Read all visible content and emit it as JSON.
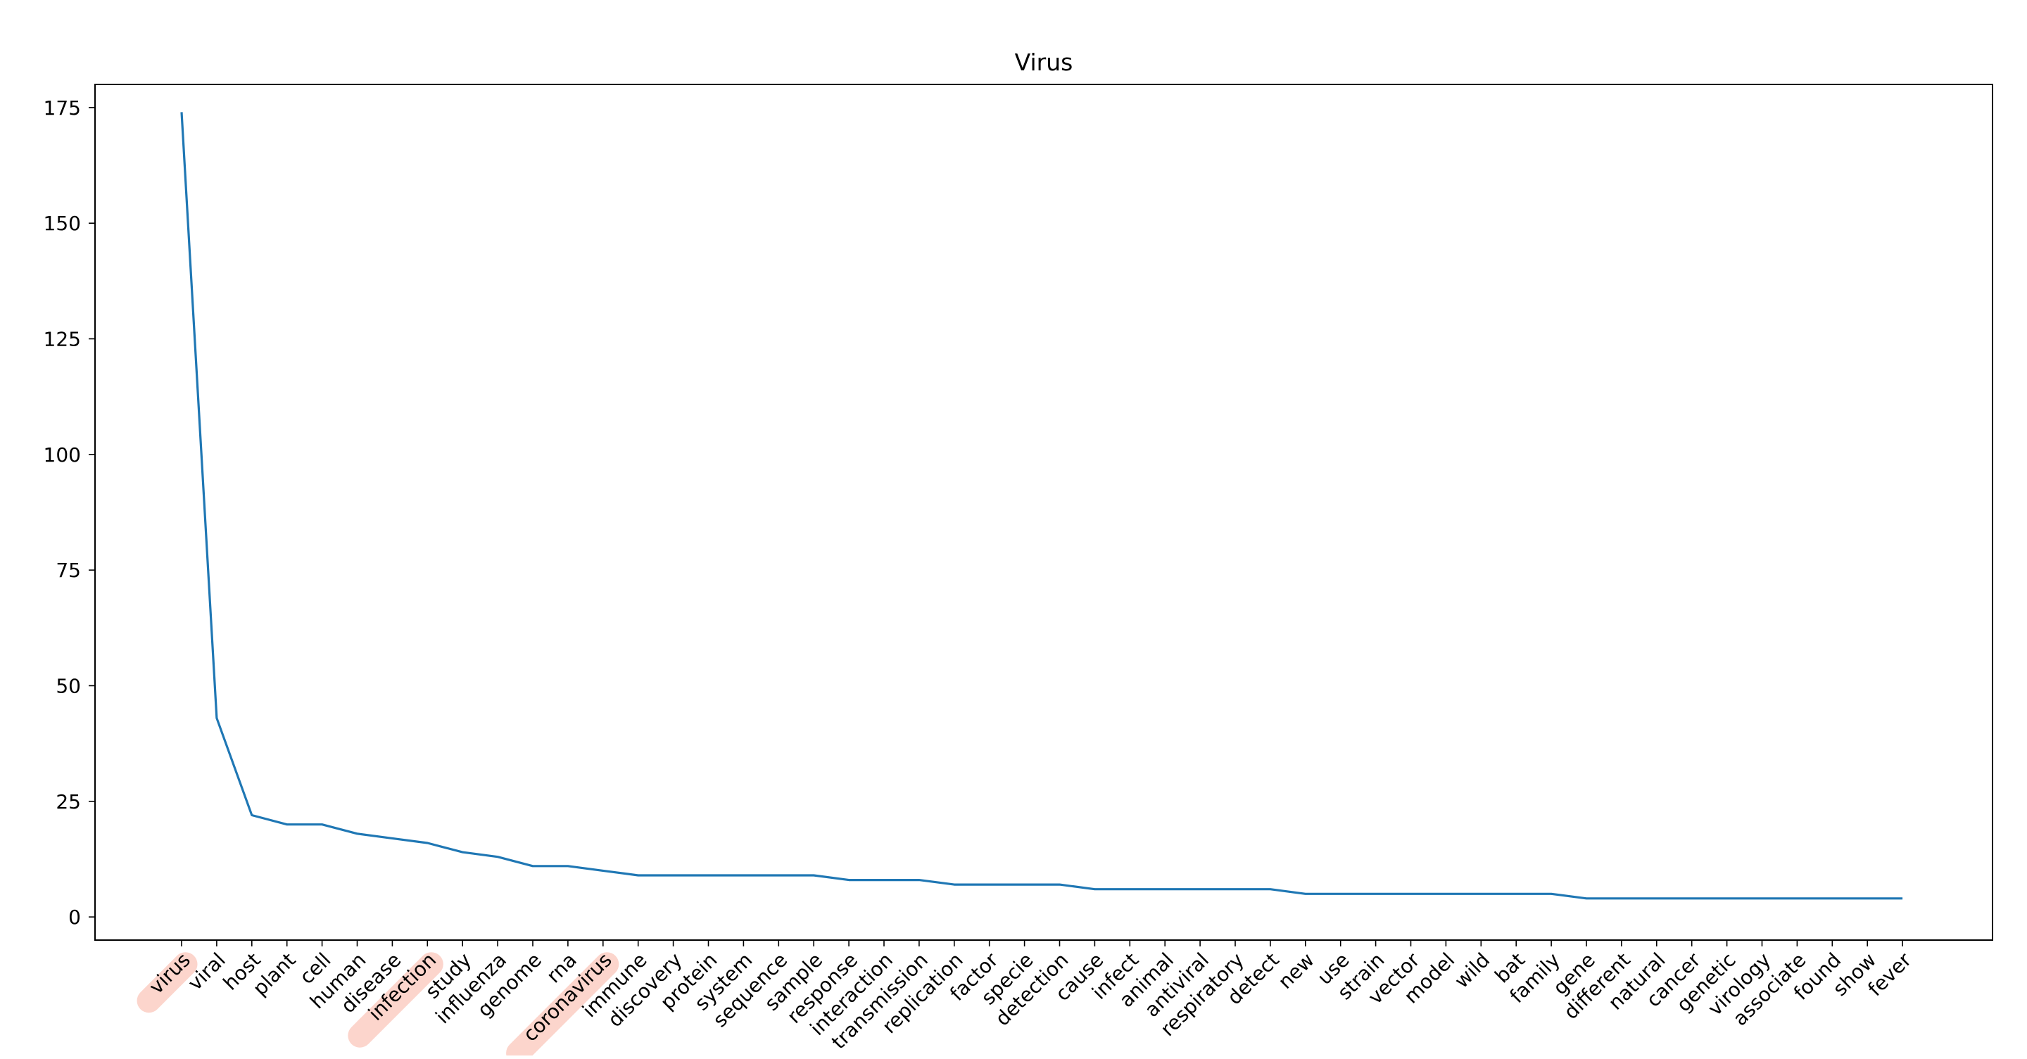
{
  "chart_data": {
    "type": "line",
    "title": "Virus",
    "xlabel": "",
    "ylabel": "",
    "ylim": [
      -5,
      180
    ],
    "yticks": [
      0,
      25,
      50,
      75,
      100,
      125,
      150,
      175
    ],
    "grid": false,
    "legend": "none",
    "line_color": "#1f77b4",
    "highlight_color": "#fcd5cc",
    "highlighted": [
      "virus",
      "infection",
      "coronavirus"
    ],
    "categories": [
      "virus",
      "viral",
      "host",
      "plant",
      "cell",
      "human",
      "disease",
      "infection",
      "study",
      "influenza",
      "genome",
      "rna",
      "coronavirus",
      "immune",
      "discovery",
      "protein",
      "system",
      "sequence",
      "sample",
      "response",
      "interaction",
      "transmission",
      "replication",
      "factor",
      "specie",
      "detection",
      "cause",
      "infect",
      "animal",
      "antiviral",
      "respiratory",
      "detect",
      "new",
      "use",
      "strain",
      "vector",
      "model",
      "wild",
      "bat",
      "family",
      "gene",
      "different",
      "natural",
      "cancer",
      "genetic",
      "virology",
      "associate",
      "found",
      "show",
      "fever"
    ],
    "values": [
      174,
      43,
      22,
      20,
      20,
      18,
      17,
      16,
      14,
      13,
      11,
      11,
      10,
      9,
      9,
      9,
      9,
      9,
      9,
      8,
      8,
      8,
      7,
      7,
      7,
      7,
      6,
      6,
      6,
      6,
      6,
      6,
      5,
      5,
      5,
      5,
      5,
      5,
      5,
      5,
      4,
      4,
      4,
      4,
      4,
      4,
      4,
      4,
      4,
      4
    ]
  }
}
